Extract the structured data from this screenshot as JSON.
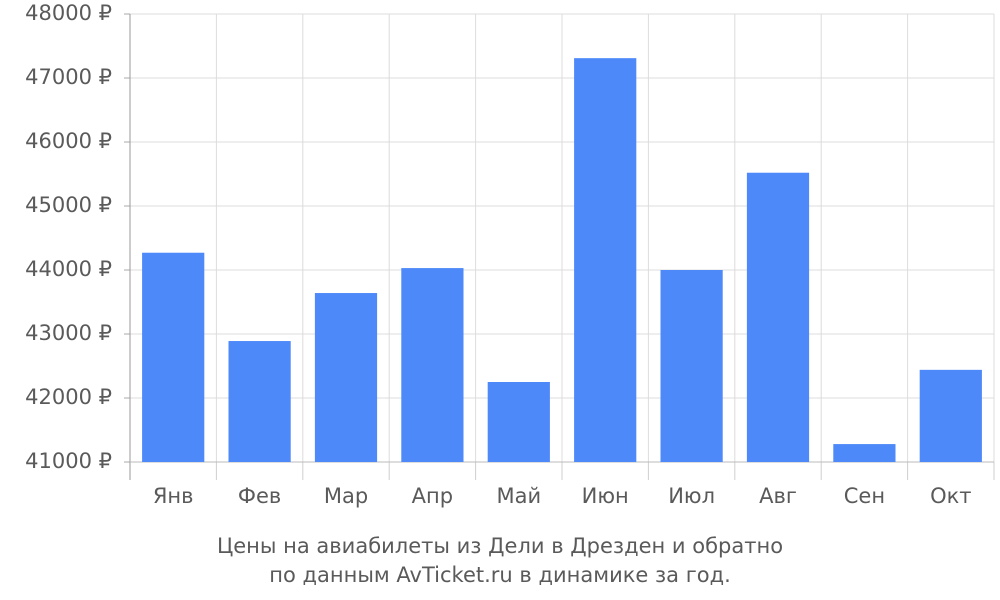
{
  "chart_data": {
    "type": "bar",
    "title": [
      "Цены на авиабилеты из Дели в Дрезден и обратно",
      "по данным AvTicket.ru в динамике за год."
    ],
    "categories": [
      "Янв",
      "Фев",
      "Мар",
      "Апр",
      "Май",
      "Июн",
      "Июл",
      "Авг",
      "Сен",
      "Окт"
    ],
    "values": [
      44270,
      42890,
      43640,
      44030,
      42250,
      47310,
      44000,
      45520,
      41280,
      42440
    ],
    "color": "#4d89f9",
    "ylim": [
      41000,
      48000
    ],
    "yticks": [
      {
        "value": 41000,
        "label": "41000 ₽"
      },
      {
        "value": 42000,
        "label": "42000 ₽"
      },
      {
        "value": 43000,
        "label": "43000 ₽"
      },
      {
        "value": 44000,
        "label": "44000 ₽"
      },
      {
        "value": 45000,
        "label": "45000 ₽"
      },
      {
        "value": 46000,
        "label": "46000 ₽"
      },
      {
        "value": 47000,
        "label": "47000 ₽"
      },
      {
        "value": 48000,
        "label": "48000 ₽"
      }
    ],
    "grid": true
  }
}
